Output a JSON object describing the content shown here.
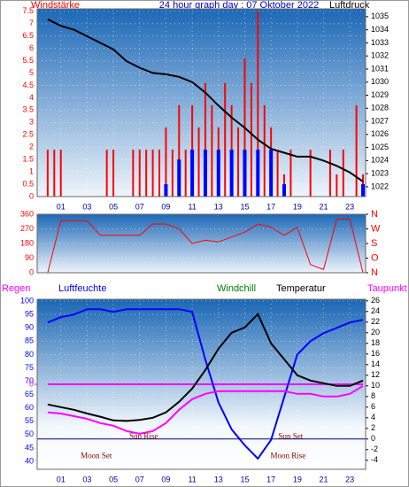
{
  "chart_data": [
    {
      "type": "line",
      "title": "24 hour graph day : 07 Oktober 2022",
      "x": [
        0,
        1,
        2,
        3,
        4,
        5,
        6,
        7,
        8,
        9,
        10,
        11,
        12,
        13,
        14,
        15,
        16,
        17,
        18,
        19,
        20,
        21,
        22,
        23,
        24
      ],
      "xlim": [
        -0.8,
        24.2
      ],
      "xticks": [
        {
          "value": 1,
          "label": "01"
        },
        {
          "value": 3,
          "label": "03"
        },
        {
          "value": 5,
          "label": "05"
        },
        {
          "value": 7,
          "label": "07"
        },
        {
          "value": 9,
          "label": "09"
        },
        {
          "value": 11,
          "label": "11"
        },
        {
          "value": 13,
          "label": "13"
        },
        {
          "value": 15,
          "label": "15"
        },
        {
          "value": 17,
          "label": "17"
        },
        {
          "value": 19,
          "label": "19"
        },
        {
          "value": 21,
          "label": "21"
        },
        {
          "value": 23,
          "label": "23"
        }
      ],
      "ylim": [
        0,
        7.6
      ],
      "yticks": [
        0,
        0.5,
        1,
        1.5,
        2,
        2.5,
        3,
        3.5,
        4,
        4.5,
        5,
        5.5,
        6,
        6.5,
        7,
        7.5
      ],
      "y2lim": [
        1021.25,
        1035.6
      ],
      "y2ticks": [
        1022,
        1023,
        1024,
        1025,
        1026,
        1027,
        1028,
        1029,
        1030,
        1031,
        1032,
        1033,
        1034,
        1035
      ],
      "grid": true,
      "series": [
        {
          "name": "Windstärke",
          "type": "bar",
          "color": "#ff0000",
          "x": [
            0,
            0.5,
            1,
            1.5,
            2,
            2.5,
            3,
            3.5,
            4,
            4.5,
            5,
            5.5,
            6,
            6.5,
            7,
            7.5,
            8,
            8.5,
            9,
            9.5,
            10,
            10.5,
            11,
            11.5,
            12,
            12.5,
            13,
            13.5,
            14,
            14.5,
            15,
            15.5,
            16,
            16.5,
            17,
            17.5,
            18,
            18.5,
            19,
            19.5,
            20,
            20.5,
            21,
            21.5,
            22,
            22.5,
            23,
            23.5,
            24
          ],
          "values": [
            1.9,
            1.9,
            1.9,
            0,
            0,
            0,
            0,
            0,
            0,
            1.9,
            1.9,
            0,
            0,
            1.9,
            1.9,
            1.9,
            1.9,
            1.9,
            2.8,
            1.9,
            3.7,
            1.9,
            3.7,
            2.8,
            4.6,
            3.7,
            2.8,
            4.6,
            3.7,
            2.8,
            5.6,
            4.6,
            7.5,
            3.7,
            2.8,
            1.9,
            0.9,
            1.9,
            0,
            0,
            1.9,
            0,
            0,
            1.9,
            0.9,
            1.9,
            0,
            3.7,
            0.9
          ]
        },
        {
          "type": "bar",
          "color": "#0000ff",
          "values": [
            0,
            0,
            0,
            0,
            0,
            0,
            0,
            0,
            0,
            0.5,
            1.5,
            1.9,
            1.9,
            1.9,
            1.9,
            1.9,
            1.9,
            1.9,
            0.5,
            0,
            0,
            0,
            0,
            0,
            0.5
          ]
        },
        {
          "name": "Luftdruck",
          "type": "line",
          "axis": "y2",
          "color": "#000000",
          "values": [
            1034.8,
            1034.3,
            1034,
            1033.5,
            1033,
            1032.5,
            1031.6,
            1031.1,
            1030.7,
            1030.6,
            1030.4,
            1030,
            1029.2,
            1028.2,
            1027.3,
            1026.5,
            1025.6,
            1024.9,
            1024.6,
            1024.3,
            1024.3,
            1024,
            1023.6,
            1023.1,
            1022.4
          ]
        }
      ]
    },
    {
      "type": "line",
      "x": [
        0,
        1,
        2,
        3,
        4,
        5,
        6,
        7,
        8,
        9,
        10,
        11,
        12,
        13,
        14,
        15,
        16,
        17,
        18,
        19,
        20,
        21,
        22,
        23,
        24
      ],
      "xlim": [
        -0.8,
        24.2
      ],
      "ylim": [
        0,
        360
      ],
      "yticks": [
        0,
        90,
        180,
        270,
        360
      ],
      "y2lim": [
        0,
        360
      ],
      "y2ticks": [
        {
          "value": 360,
          "label": "N"
        },
        {
          "value": 270,
          "label": "W"
        },
        {
          "value": 180,
          "label": "S"
        },
        {
          "value": 90,
          "label": "O"
        },
        {
          "value": 0,
          "label": "N"
        }
      ],
      "grid": true,
      "series": [
        {
          "type": "line",
          "color": "#ff0000",
          "values": [
            0,
            320,
            320,
            320,
            230,
            230,
            230,
            230,
            300,
            300,
            270,
            180,
            200,
            190,
            220,
            250,
            300,
            280,
            230,
            280,
            50,
            20,
            330,
            330,
            0
          ]
        }
      ]
    },
    {
      "type": "line",
      "x": [
        0,
        1,
        2,
        3,
        4,
        5,
        6,
        7,
        8,
        9,
        10,
        11,
        12,
        13,
        14,
        15,
        16,
        17,
        18,
        19,
        20,
        21,
        22,
        23,
        24
      ],
      "xlim": [
        -0.8,
        24.2
      ],
      "xticks": [
        {
          "value": 1,
          "label": "01"
        },
        {
          "value": 3,
          "label": "03"
        },
        {
          "value": 5,
          "label": "05"
        },
        {
          "value": 7,
          "label": "07"
        },
        {
          "value": 9,
          "label": "09"
        },
        {
          "value": 11,
          "label": "11"
        },
        {
          "value": 13,
          "label": "13"
        },
        {
          "value": 15,
          "label": "15"
        },
        {
          "value": 17,
          "label": "17"
        },
        {
          "value": 19,
          "label": "19"
        },
        {
          "value": 21,
          "label": "21"
        },
        {
          "value": 23,
          "label": "23"
        }
      ],
      "ylim": [
        37,
        100.7
      ],
      "yticks": [
        40,
        45,
        50,
        55,
        60,
        65,
        70,
        75,
        80,
        85,
        90,
        95,
        100
      ],
      "y2lim": [
        -5.7,
        26.3
      ],
      "y2ticks": [
        -4,
        -2,
        0,
        2,
        4,
        6,
        8,
        10,
        12,
        14,
        16,
        18,
        20,
        22,
        24,
        26
      ],
      "y3lim": [
        -1,
        1
      ],
      "y3ticks": [
        0
      ],
      "zero_line_color": "#000080",
      "grid": true,
      "series": [
        {
          "name": "Regen",
          "type": "line",
          "axis": "y3",
          "color": "#ff00ff",
          "x": [
            0,
            24
          ],
          "values": [
            0,
            0
          ]
        },
        {
          "name": "Luftfeuchte",
          "type": "line",
          "color": "#0000ff",
          "values": [
            92,
            94,
            95,
            97,
            97,
            96,
            97,
            97,
            97,
            97,
            97,
            96,
            78,
            62,
            52,
            46,
            41,
            48,
            64,
            80,
            85,
            88,
            90,
            92,
            93
          ]
        },
        {
          "name": "Windchill",
          "type": "line",
          "axis": "y2",
          "color": "#008000",
          "values": [
            null,
            null,
            null,
            null,
            null,
            null,
            null,
            null,
            null,
            null,
            null,
            null,
            null,
            null,
            null,
            null,
            null,
            null,
            null,
            null,
            null,
            null,
            null,
            null,
            null
          ]
        },
        {
          "name": "Temperatur",
          "type": "line",
          "axis": "y2",
          "color": "#000000",
          "values": [
            6.5,
            6,
            5.5,
            4.8,
            4.2,
            3.5,
            3.4,
            3.6,
            4,
            5,
            7,
            9.5,
            13,
            17,
            20,
            21,
            23.5,
            18,
            15,
            12,
            11,
            10.5,
            10,
            10,
            11
          ]
        },
        {
          "name": "Taupunkt",
          "type": "line",
          "axis": "y2",
          "color": "#ff00ff",
          "values": [
            5,
            4.8,
            4.3,
            3.8,
            3,
            2.5,
            1.5,
            1,
            1.5,
            3,
            5.5,
            7.5,
            8.5,
            9,
            9,
            9,
            9,
            9,
            9,
            8.5,
            8.5,
            8,
            8,
            8.5,
            10
          ]
        }
      ],
      "annotations": [
        {
          "text": "Sun Rise",
          "x": 7.3,
          "y": 0.4
        },
        {
          "text": "Sun Set",
          "x": 18.5,
          "y": 0.4
        },
        {
          "text": "Moon Set",
          "x": 3.7,
          "y": -3.3
        },
        {
          "text": "Moon Rise",
          "x": 18.3,
          "y": -3.3
        }
      ]
    }
  ]
}
